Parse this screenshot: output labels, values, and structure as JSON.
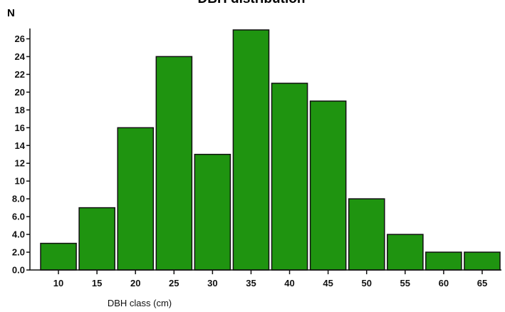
{
  "chart_data": {
    "type": "bar",
    "title": "DBH distribution",
    "ylabel": "N",
    "xlabel": "DBH class (cm)",
    "categories": [
      "10",
      "15",
      "20",
      "25",
      "30",
      "35",
      "40",
      "45",
      "50",
      "55",
      "60",
      "65"
    ],
    "values": [
      3,
      7,
      16,
      24,
      13,
      27,
      21,
      19,
      8,
      4,
      2,
      2
    ],
    "ylim": [
      0,
      27
    ],
    "yticks": [
      "0.0",
      "2.0",
      "4.0",
      "6.0",
      "8.0",
      "10",
      "12",
      "14",
      "16",
      "18",
      "20",
      "22",
      "24",
      "26"
    ],
    "ytick_values": [
      0,
      2,
      4,
      6,
      8,
      10,
      12,
      14,
      16,
      18,
      20,
      22,
      24,
      26
    ],
    "bar_color": "#1f9410",
    "grid": false,
    "legend": "none"
  }
}
